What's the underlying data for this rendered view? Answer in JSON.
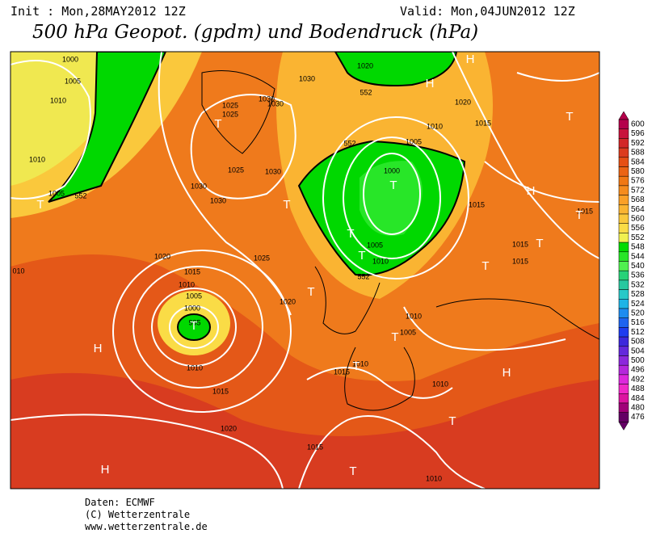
{
  "header": {
    "init": "Init : Mon,28MAY2012 12Z",
    "valid": "Valid: Mon,04JUN2012 12Z",
    "title": "500 hPa Geopot. (gpdm) und Bodendruck (hPa)"
  },
  "map": {
    "contour_labels": [
      "1000",
      "1005",
      "1010",
      "1010",
      "1005",
      "1020",
      "1015",
      "1010",
      "1005",
      "1000",
      "995",
      "1010",
      "1015",
      "1020",
      "1025",
      "1030",
      "1030",
      "1025",
      "1030",
      "1025",
      "1025",
      "1030",
      "1030",
      "1030",
      "1020",
      "1010",
      "1005",
      "1000",
      "1005",
      "1010",
      "1020",
      "1015",
      "1015",
      "1015",
      "1015",
      "1015",
      "1020",
      "1010",
      "1005",
      "1015",
      "1010",
      "1010",
      "1015",
      "1010",
      "010",
      "552",
      "552",
      "552",
      "552"
    ],
    "pressure_centers": [
      "H",
      "H",
      "H",
      "H",
      "H",
      "H",
      "T",
      "T",
      "T",
      "T",
      "T",
      "T",
      "T",
      "T",
      "T",
      "T",
      "T",
      "T",
      "T",
      "T",
      "T",
      "T"
    ]
  },
  "colorbar": {
    "levels": [
      600,
      596,
      592,
      588,
      584,
      580,
      576,
      572,
      568,
      564,
      560,
      556,
      552,
      548,
      544,
      540,
      536,
      532,
      528,
      524,
      520,
      516,
      512,
      508,
      504,
      500,
      496,
      492,
      488,
      484,
      480,
      476
    ],
    "colors": [
      "#b4004b",
      "#c8143c",
      "#d22828",
      "#dc3c1e",
      "#e65014",
      "#eb6414",
      "#f07814",
      "#f58c1e",
      "#faa028",
      "#fab432",
      "#fac83c",
      "#fadc46",
      "#f0f050",
      "#00dc00",
      "#28e628",
      "#50f050",
      "#28d278",
      "#28c8a0",
      "#28c8c8",
      "#1eb4e6",
      "#1e8cf0",
      "#1e64f0",
      "#1e3cf0",
      "#3c28dc",
      "#6428dc",
      "#8c28dc",
      "#b428dc",
      "#dc28dc",
      "#f028c8",
      "#dc14a0",
      "#a00078",
      "#640064"
    ]
  },
  "footer": {
    "lines": [
      "Daten: ECMWF",
      "(C) Wetterzentrale",
      "www.wetterzentrale.de"
    ]
  }
}
